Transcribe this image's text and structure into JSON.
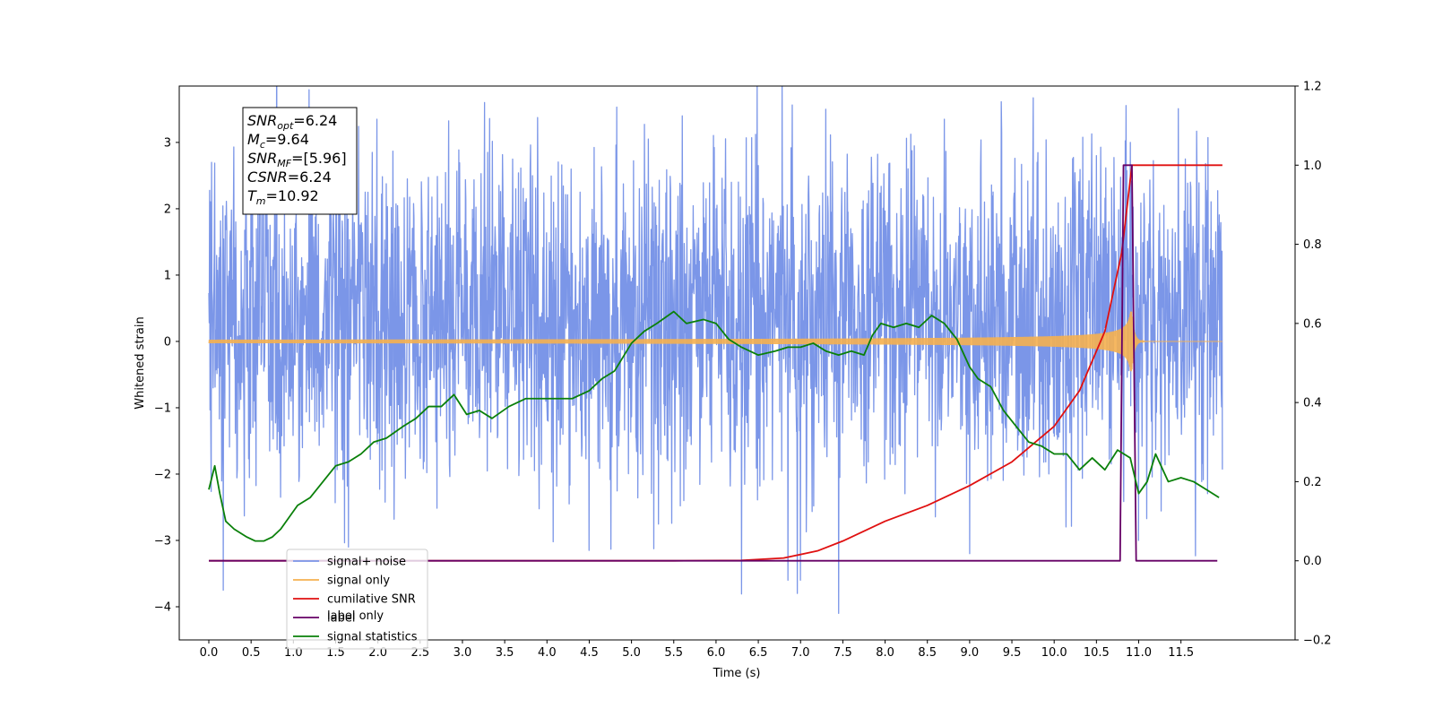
{
  "chart_data": {
    "type": "line",
    "title": "",
    "xlabel": "Time (s)",
    "ylabel": "Whitened strain",
    "ylabel_right": "",
    "xlim": [
      -0.35,
      12.85
    ],
    "ylim": [
      -4.5,
      3.85
    ],
    "ylim_right": [
      -0.2,
      1.2
    ],
    "x_ticks": [
      "0.0",
      "0.5",
      "1.0",
      "1.5",
      "2.0",
      "2.5",
      "3.0",
      "3.5",
      "4.0",
      "4.5",
      "5.0",
      "5.5",
      "6.0",
      "6.5",
      "7.0",
      "7.5",
      "8.0",
      "8.5",
      "9.0",
      "9.5",
      "10.0",
      "10.5",
      "11.0",
      "11.5"
    ],
    "y_ticks": [
      "3",
      "2",
      "1",
      "0",
      "−1",
      "−2",
      "−3",
      "−4"
    ],
    "y_ticks_right": [
      "1.2",
      "1.0",
      "0.8",
      "0.6",
      "0.4",
      "0.2",
      "0.0",
      "−0.2"
    ],
    "grid": false,
    "legend_position": "lower-left",
    "legend": [
      {
        "label": "signal+ noise",
        "color": "#7b96e8"
      },
      {
        "label": "signal only",
        "color": "#f5b050"
      },
      {
        "label": "cumilative SNR",
        "color": "#e01010"
      },
      {
        "label": "label",
        "color": "#660066"
      },
      {
        "label": "signal statistics",
        "color": "#0a800a"
      }
    ],
    "legend_ghost_text": [
      "label only"
    ],
    "annotation": {
      "lines": [
        {
          "main": "SNR",
          "sub": "opt",
          "value": "=6.24",
          "italic": true
        },
        {
          "main": "M",
          "sub": "c",
          "value": "=9.64",
          "italic": true
        },
        {
          "main": "SNR",
          "sub": "MF",
          "value": "=[5.96]",
          "italic": true
        },
        {
          "main": "CSNR",
          "sub": "",
          "value": "=6.24",
          "italic": true
        },
        {
          "main": "T",
          "sub": "m",
          "value": "=10.92",
          "italic": true
        }
      ]
    },
    "series": [
      {
        "name": "signal+ noise",
        "axis": "left",
        "color": "#7b96e8",
        "t_start": 0.0,
        "t_end": 11.99,
        "envelope_upper": 2.3,
        "envelope_lower": -1.6,
        "spikes": [
          [
            0.03,
            2.7
          ],
          [
            0.17,
            -3.75
          ],
          [
            0.5,
            2.55
          ],
          [
            1.65,
            -3.1
          ],
          [
            1.61,
            2.8
          ],
          [
            3.3,
            2.85
          ],
          [
            3.8,
            2.6
          ],
          [
            4.5,
            -3.15
          ],
          [
            5.2,
            3.05
          ],
          [
            5.6,
            3.4
          ],
          [
            7.0,
            -3.6
          ],
          [
            7.45,
            -4.1
          ],
          [
            7.3,
            3.5
          ],
          [
            8.7,
            3.35
          ],
          [
            9.0,
            -3.2
          ],
          [
            10.5,
            2.8
          ],
          [
            10.9,
            3.0
          ],
          [
            11.0,
            -3.0
          ],
          [
            9.75,
            2.6
          ],
          [
            2.35,
            2.45
          ],
          [
            6.5,
            2.65
          ],
          [
            6.85,
            -3.6
          ],
          [
            11.55,
            2.75
          ]
        ]
      },
      {
        "name": "signal only",
        "axis": "left",
        "color": "#f5b050",
        "t_start": 0.0,
        "t_end": 11.99,
        "merger_time": 10.92,
        "peak_amplitude": 0.45
      },
      {
        "name": "cumilative SNR",
        "axis": "right",
        "color": "#e01010",
        "x": [
          0.0,
          5.5,
          6.3,
          6.8,
          7.2,
          7.5,
          8.0,
          8.5,
          9.0,
          9.5,
          10.0,
          10.3,
          10.6,
          10.8,
          10.92,
          11.99
        ],
        "y": [
          0.0,
          0.0,
          0.001,
          0.007,
          0.025,
          0.05,
          0.1,
          0.14,
          0.19,
          0.25,
          0.34,
          0.43,
          0.58,
          0.78,
          1.0,
          1.0
        ]
      },
      {
        "name": "label",
        "axis": "right",
        "color": "#660066",
        "x": [
          0.0,
          10.78,
          10.82,
          10.92,
          10.97,
          11.93
        ],
        "y": [
          0.0,
          0.0,
          1.0,
          1.0,
          0.0,
          0.0
        ]
      },
      {
        "name": "signal statistics",
        "axis": "right",
        "color": "#0a800a",
        "x": [
          0.0,
          0.07,
          0.13,
          0.2,
          0.3,
          0.45,
          0.55,
          0.65,
          0.75,
          0.85,
          0.95,
          1.05,
          1.2,
          1.35,
          1.5,
          1.65,
          1.8,
          1.95,
          2.1,
          2.3,
          2.45,
          2.6,
          2.75,
          2.9,
          3.05,
          3.2,
          3.35,
          3.55,
          3.75,
          3.95,
          4.15,
          4.3,
          4.5,
          4.65,
          4.8,
          5.0,
          5.15,
          5.3,
          5.5,
          5.65,
          5.85,
          6.0,
          6.15,
          6.3,
          6.5,
          6.7,
          6.85,
          7.0,
          7.15,
          7.3,
          7.45,
          7.6,
          7.75,
          7.85,
          7.95,
          8.1,
          8.25,
          8.4,
          8.55,
          8.7,
          8.85,
          9.0,
          9.1,
          9.25,
          9.4,
          9.55,
          9.7,
          9.85,
          10.0,
          10.15,
          10.3,
          10.45,
          10.6,
          10.75,
          10.9,
          11.0,
          11.1,
          11.2,
          11.35,
          11.5,
          11.65,
          11.8,
          11.95
        ],
        "y": [
          0.18,
          0.24,
          0.17,
          0.1,
          0.08,
          0.06,
          0.05,
          0.05,
          0.06,
          0.08,
          0.11,
          0.14,
          0.16,
          0.2,
          0.24,
          0.25,
          0.27,
          0.3,
          0.31,
          0.34,
          0.36,
          0.39,
          0.39,
          0.42,
          0.37,
          0.38,
          0.36,
          0.39,
          0.41,
          0.41,
          0.41,
          0.41,
          0.43,
          0.46,
          0.48,
          0.55,
          0.58,
          0.6,
          0.63,
          0.6,
          0.61,
          0.6,
          0.56,
          0.54,
          0.52,
          0.53,
          0.54,
          0.54,
          0.55,
          0.53,
          0.52,
          0.53,
          0.52,
          0.57,
          0.6,
          0.59,
          0.6,
          0.59,
          0.62,
          0.6,
          0.56,
          0.49,
          0.46,
          0.44,
          0.38,
          0.34,
          0.3,
          0.29,
          0.27,
          0.27,
          0.23,
          0.26,
          0.23,
          0.28,
          0.26,
          0.17,
          0.2,
          0.27,
          0.2,
          0.21,
          0.2,
          0.18,
          0.16
        ]
      }
    ]
  }
}
